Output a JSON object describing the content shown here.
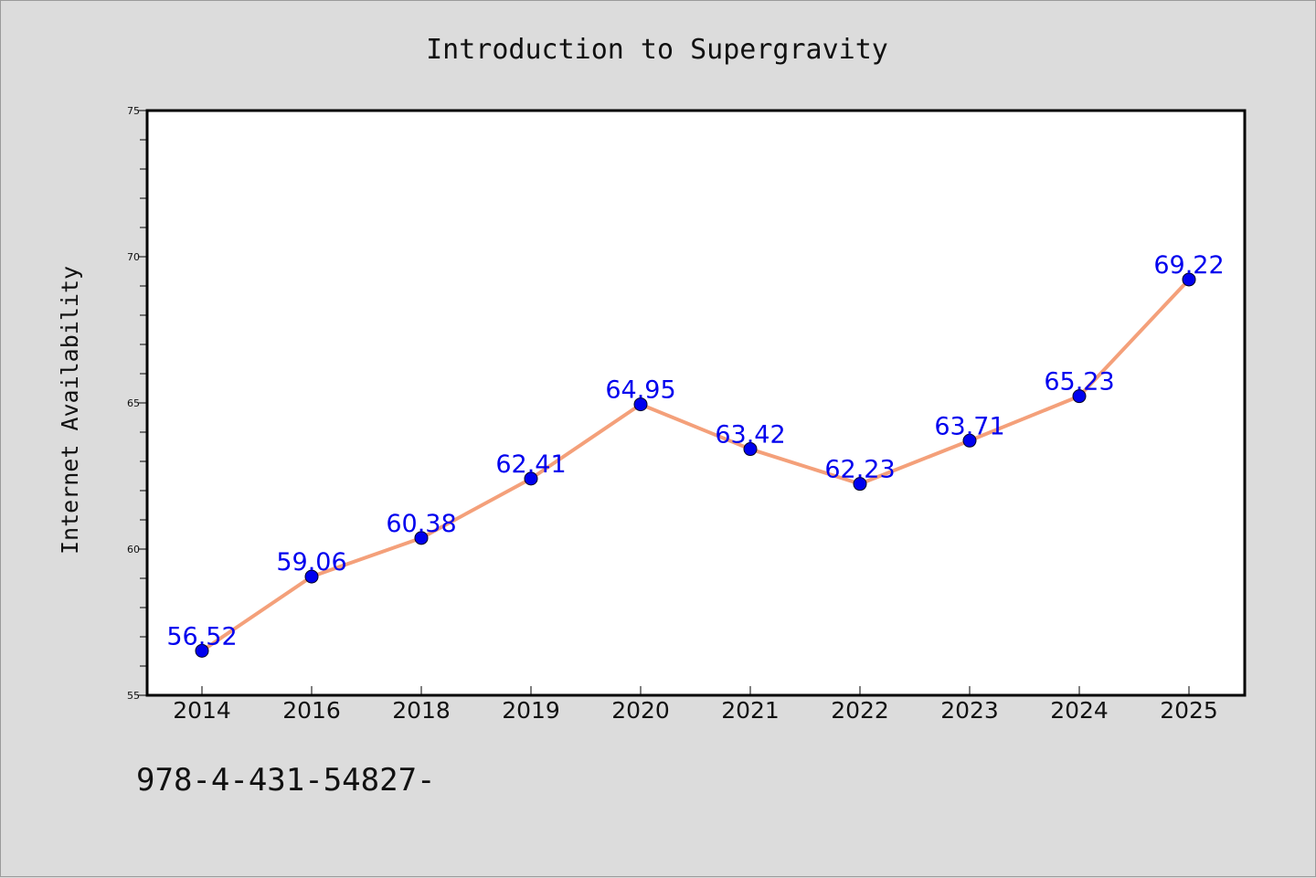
{
  "chart_data": {
    "type": "line",
    "title": "Introduction to Supergravity",
    "xlabel": "",
    "ylabel": "Internet Availability",
    "categories": [
      "2014",
      "2016",
      "2018",
      "2019",
      "2020",
      "2021",
      "2022",
      "2023",
      "2024",
      "2025"
    ],
    "series": [
      {
        "values": [
          56.52,
          59.06,
          60.38,
          62.41,
          64.95,
          63.42,
          62.23,
          63.71,
          65.23,
          69.22
        ]
      }
    ],
    "data_labels": [
      "56.52",
      "59.06",
      "60.38",
      "62.41",
      "64.95",
      "63.42",
      "62.23",
      "63.71",
      "65.23",
      "69.22"
    ],
    "ylim": [
      55,
      75
    ],
    "yticks": [
      "55",
      "60",
      "65",
      "70",
      "75"
    ],
    "grid": false,
    "legend": "none",
    "line_color": "#f4a07a",
    "marker_color": "#0000ee",
    "label_color": "#0000ee"
  },
  "footer_text": "978-4-431-54827-"
}
